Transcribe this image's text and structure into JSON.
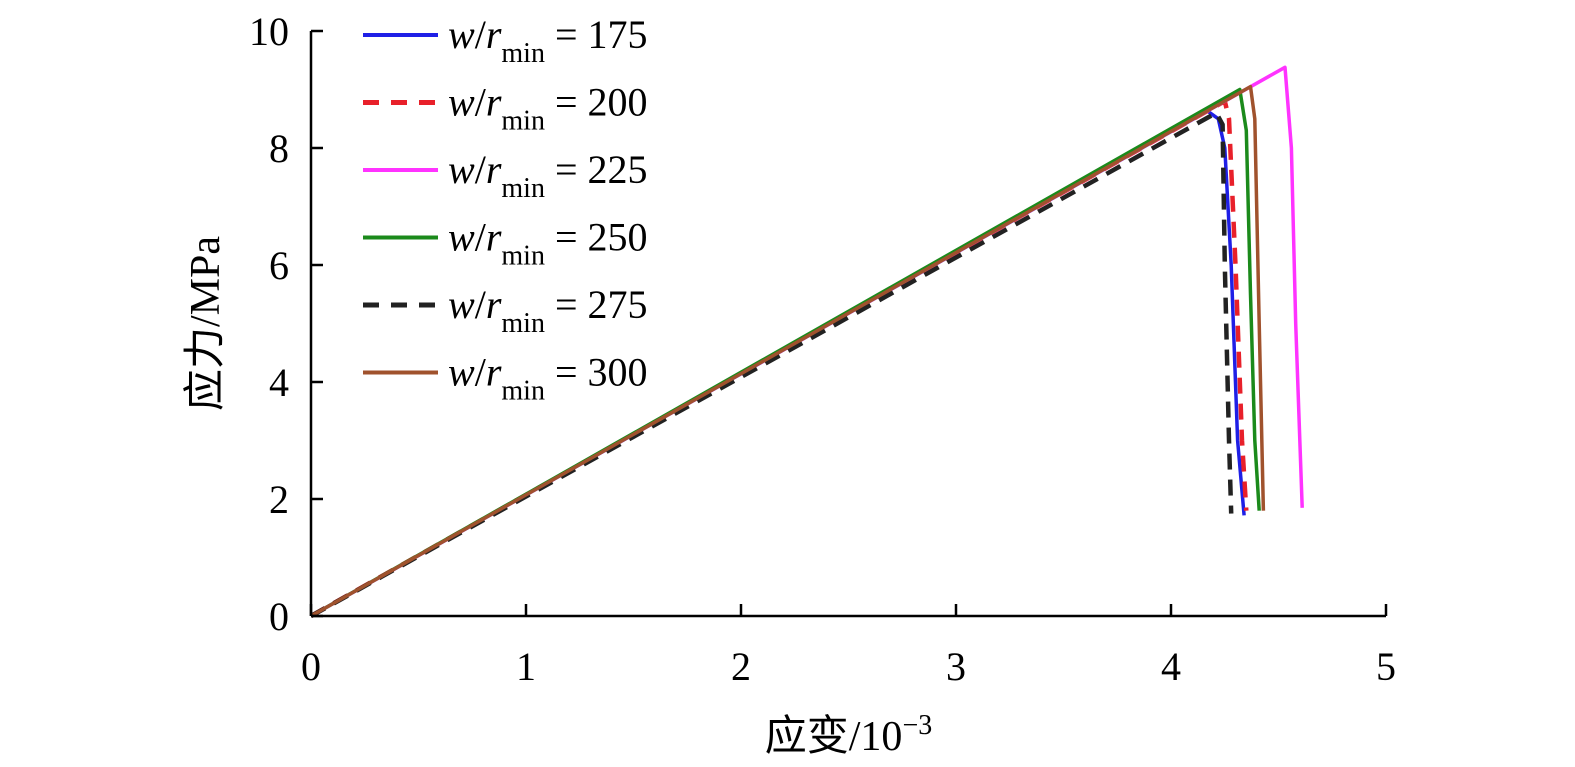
{
  "chart_data": {
    "type": "line",
    "xlabel": "应变/10",
    "xlabel_exp": "−3",
    "ylabel": "应力/MPa",
    "xlim": [
      0,
      5
    ],
    "ylim": [
      0,
      10
    ],
    "xticks": [
      "0",
      "1",
      "2",
      "3",
      "4",
      "5"
    ],
    "yticks": [
      "0",
      "2",
      "4",
      "6",
      "8",
      "10"
    ],
    "grid": false,
    "legend_position": "top-left",
    "series": [
      {
        "name_var": "w",
        "name_sep": "/",
        "name_r": "r",
        "name_sub": "min",
        "name_value": " = 175",
        "color": "#1f1fe6",
        "dash": "solid",
        "points": [
          [
            0,
            0
          ],
          [
            4.17,
            8.63
          ],
          [
            4.22,
            8.5
          ],
          [
            4.25,
            8.0
          ],
          [
            4.28,
            6.0
          ],
          [
            4.31,
            3.0
          ],
          [
            4.34,
            1.72
          ]
        ]
      },
      {
        "name_var": "w",
        "name_sep": "/",
        "name_r": "r",
        "name_sub": "min",
        "name_value": " = 200",
        "color": "#e8202a",
        "dash": "dashed",
        "points": [
          [
            0,
            0
          ],
          [
            4.25,
            8.8
          ],
          [
            4.27,
            8.5
          ],
          [
            4.3,
            6.0
          ],
          [
            4.33,
            3.0
          ],
          [
            4.35,
            1.8
          ]
        ]
      },
      {
        "name_var": "w",
        "name_sep": "/",
        "name_r": "r",
        "name_sub": "min",
        "name_value": " = 225",
        "color": "#ff33ff",
        "dash": "solid",
        "points": [
          [
            0,
            0
          ],
          [
            4.53,
            9.38
          ],
          [
            4.56,
            8.0
          ],
          [
            4.58,
            5.0
          ],
          [
            4.61,
            1.85
          ]
        ]
      },
      {
        "name_var": "w",
        "name_sep": "/",
        "name_r": "r",
        "name_sub": "min",
        "name_value": " = 250",
        "color": "#1b8a1b",
        "dash": "solid",
        "points": [
          [
            0,
            0
          ],
          [
            4.32,
            9.0
          ],
          [
            4.35,
            8.3
          ],
          [
            4.37,
            5.5
          ],
          [
            4.39,
            3.0
          ],
          [
            4.41,
            1.8
          ]
        ]
      },
      {
        "name_var": "w",
        "name_sep": "/",
        "name_r": "r",
        "name_sub": "min",
        "name_value": " = 275",
        "color": "#222222",
        "dash": "dashed",
        "points": [
          [
            0,
            0
          ],
          [
            4.21,
            8.6
          ],
          [
            4.24,
            8.4
          ],
          [
            4.25,
            6.0
          ],
          [
            4.27,
            3.0
          ],
          [
            4.28,
            1.75
          ]
        ]
      },
      {
        "name_var": "w",
        "name_sep": "/",
        "name_r": "r",
        "name_sub": "min",
        "name_value": " = 300",
        "color": "#a0522d",
        "dash": "solid",
        "points": [
          [
            0,
            0
          ],
          [
            4.37,
            9.05
          ],
          [
            4.39,
            8.5
          ],
          [
            4.41,
            5.0
          ],
          [
            4.43,
            1.8
          ]
        ]
      }
    ]
  }
}
